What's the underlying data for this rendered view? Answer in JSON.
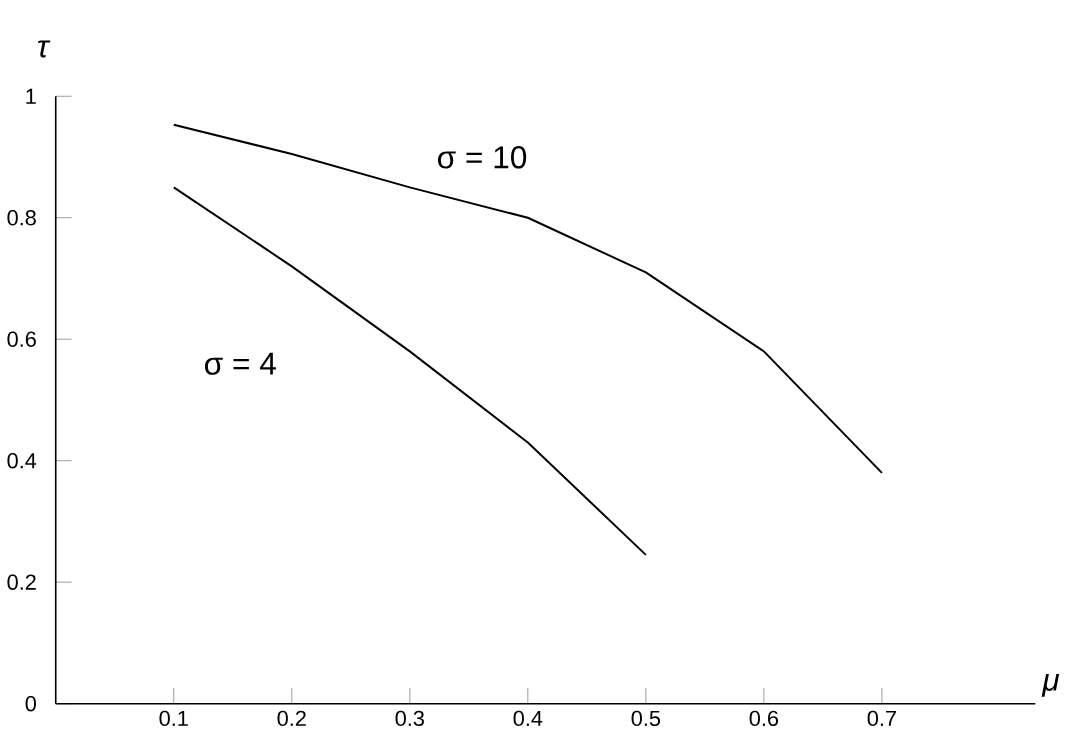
{
  "chart_data": {
    "type": "line",
    "xlabel": "μ",
    "ylabel": "τ",
    "x": [
      0.1,
      0.2,
      0.3,
      0.4,
      0.5,
      0.6,
      0.7
    ],
    "series": [
      {
        "name": "σ = 10",
        "color": "#000000",
        "values": [
          0.953,
          0.905,
          0.85,
          0.8,
          0.71,
          0.58,
          0.38
        ]
      },
      {
        "name": "σ = 4",
        "color": "#000000",
        "values": [
          0.85,
          0.72,
          0.58,
          0.43,
          0.245,
          null,
          null
        ]
      }
    ],
    "xlim": [
      0,
      0.83
    ],
    "ylim": [
      0,
      1
    ],
    "xticks": [
      0.1,
      0.2,
      0.3,
      0.4,
      0.5,
      0.6,
      0.7
    ],
    "yticks": [
      0,
      0.2,
      0.4,
      0.6,
      0.8,
      1
    ],
    "grid": false,
    "marker": "none",
    "line_style": "solid"
  }
}
